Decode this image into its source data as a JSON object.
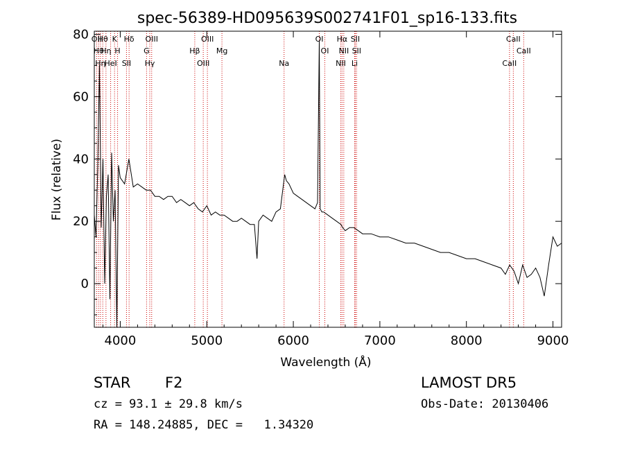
{
  "chart_data": {
    "type": "line",
    "title": "spec-56389-HD095639S002741F01_sp16-133.fits",
    "xlabel": "Wavelength (Å)",
    "ylabel": "Flux (relative)",
    "xlim": [
      3700,
      9100
    ],
    "ylim": [
      -14,
      81
    ],
    "x_ticks": [
      4000,
      5000,
      6000,
      7000,
      8000,
      9000
    ],
    "y_ticks": [
      0,
      20,
      40,
      60,
      80
    ],
    "grid": false,
    "series": [
      {
        "x": [
          3700,
          3720,
          3740,
          3760,
          3780,
          3800,
          3820,
          3840,
          3860,
          3880,
          3900,
          3920,
          3940,
          3960,
          3980,
          4000,
          4050,
          4100,
          4150,
          4200,
          4250,
          4300,
          4350,
          4400,
          4450,
          4500,
          4550,
          4600,
          4650,
          4700,
          4750,
          4800,
          4850,
          4900,
          4950,
          5000,
          5050,
          5100,
          5150,
          5200,
          5250,
          5300,
          5350,
          5400,
          5450,
          5500,
          5550,
          5580,
          5600,
          5650,
          5700,
          5750,
          5800,
          5850,
          5900,
          5920,
          5950,
          6000,
          6050,
          6100,
          6150,
          6200,
          6250,
          6280,
          6300,
          6310,
          6330,
          6350,
          6400,
          6450,
          6500,
          6550,
          6570,
          6600,
          6650,
          6700,
          6750,
          6800,
          6900,
          7000,
          7100,
          7200,
          7300,
          7400,
          7500,
          7600,
          7700,
          7800,
          7900,
          8000,
          8100,
          8200,
          8300,
          8400,
          8450,
          8500,
          8550,
          8600,
          8650,
          8700,
          8750,
          8800,
          8850,
          8900,
          8950,
          9000,
          9050,
          9100
        ],
        "y": [
          22,
          15,
          38,
          70,
          18,
          40,
          0,
          28,
          35,
          -5,
          42,
          20,
          30,
          -14,
          38,
          34,
          32,
          40,
          31,
          32,
          31,
          30,
          30,
          28,
          28,
          27,
          28,
          28,
          26,
          27,
          26,
          25,
          26,
          24,
          23,
          25,
          22,
          23,
          22,
          22,
          21,
          20,
          20,
          21,
          20,
          19,
          19,
          8,
          20,
          22,
          21,
          20,
          23,
          24,
          35,
          33,
          32,
          29,
          28,
          27,
          26,
          25,
          24,
          26,
          78,
          24,
          23,
          23,
          22,
          21,
          20,
          19,
          18,
          17,
          18,
          18,
          17,
          16,
          16,
          15,
          15,
          14,
          13,
          13,
          12,
          11,
          10,
          10,
          9,
          8,
          8,
          7,
          6,
          5,
          3,
          6,
          4,
          0,
          6,
          2,
          3,
          5,
          2,
          -4,
          6,
          15,
          12,
          13
        ]
      }
    ],
    "line_markers": [
      {
        "x": 3727,
        "label": "OII"
      },
      {
        "x": 3750,
        "label": "Hθ"
      },
      {
        "x": 3771,
        "label": "Hη"
      },
      {
        "x": 3798,
        "label": "Hθ"
      },
      {
        "x": 3835,
        "label": "Hη"
      },
      {
        "x": 3889,
        "label": "HeI"
      },
      {
        "x": 3934,
        "label": "K"
      },
      {
        "x": 3969,
        "label": "H"
      },
      {
        "x": 4072,
        "label": "SII"
      },
      {
        "x": 4102,
        "label": "Hδ"
      },
      {
        "x": 4304,
        "label": "G"
      },
      {
        "x": 4341,
        "label": "Hγ"
      },
      {
        "x": 4363,
        "label": "OIII"
      },
      {
        "x": 4861,
        "label": "Hβ"
      },
      {
        "x": 4959,
        "label": "OIII"
      },
      {
        "x": 5007,
        "label": "OIII"
      },
      {
        "x": 5175,
        "label": "Mg"
      },
      {
        "x": 5893,
        "label": "Na"
      },
      {
        "x": 6300,
        "label": "OI"
      },
      {
        "x": 6364,
        "label": "OI"
      },
      {
        "x": 6548,
        "label": "NII"
      },
      {
        "x": 6563,
        "label": "Hα"
      },
      {
        "x": 6583,
        "label": "NII"
      },
      {
        "x": 6708,
        "label": "Li"
      },
      {
        "x": 6716,
        "label": "SII"
      },
      {
        "x": 6731,
        "label": "SII"
      },
      {
        "x": 8498,
        "label": "CaII"
      },
      {
        "x": 8542,
        "label": "CaII"
      },
      {
        "x": 8662,
        "label": "CaII"
      }
    ]
  },
  "info": {
    "object_class": "STAR",
    "subclass": "F2",
    "survey": "LAMOST DR5",
    "cz": "cz = 93.1 ± 29.8 km/s",
    "obs_date": "Obs-Date: 20130406",
    "coords": "RA = 148.24885, DEC =   1.34320"
  },
  "colors": {
    "spectrum": "#000000",
    "marker_line": "#cc0000",
    "background": "#ffffff"
  }
}
